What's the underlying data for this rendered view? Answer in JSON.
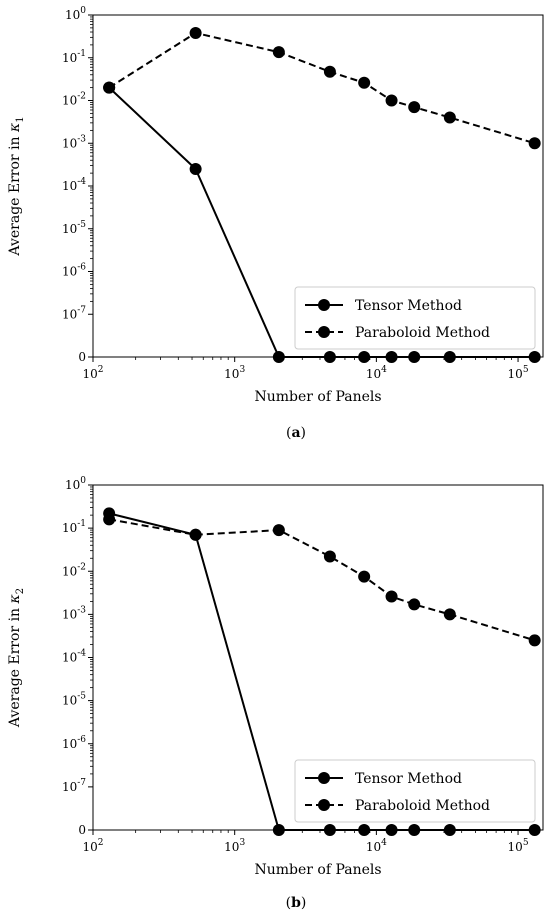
{
  "chart_data": [
    {
      "type": "line",
      "panel_label": "a",
      "xlabel": "Number of Panels",
      "ylabel_prefix": "Average Error in ",
      "ylabel_symbol": "κ",
      "ylabel_sub": "1",
      "x_scale": "log",
      "y_scale": "symlog",
      "xlim": [
        100,
        150000
      ],
      "ylim": [
        0,
        1
      ],
      "x_ticks": [
        {
          "value": 100,
          "base": "10",
          "exp": "2"
        },
        {
          "value": 1000,
          "base": "10",
          "exp": "3"
        },
        {
          "value": 10000,
          "base": "10",
          "exp": "4"
        },
        {
          "value": 100000,
          "base": "10",
          "exp": "5"
        }
      ],
      "y_ticks": [
        {
          "value": 1,
          "base": "10",
          "exp": "0"
        },
        {
          "value": 0.1,
          "base": "10",
          "exp": "-1"
        },
        {
          "value": 0.01,
          "base": "10",
          "exp": "-2"
        },
        {
          "value": 0.001,
          "base": "10",
          "exp": "-3"
        },
        {
          "value": 0.0001,
          "base": "10",
          "exp": "-4"
        },
        {
          "value": 1e-05,
          "base": "10",
          "exp": "-5"
        },
        {
          "value": 1e-06,
          "base": "10",
          "exp": "-6"
        },
        {
          "value": 1e-07,
          "base": "10",
          "exp": "-7"
        },
        {
          "value": 0,
          "base": "0",
          "exp": ""
        }
      ],
      "legend_position": "bottom-right",
      "series": [
        {
          "name": "Tensor Method",
          "style": "solid",
          "color": "#000000",
          "x": [
            130,
            530,
            2050,
            4700,
            8200,
            12800,
            18500,
            33000,
            131000
          ],
          "y": [
            0.02,
            0.00025,
            0,
            0,
            0,
            0,
            0,
            0,
            0
          ]
        },
        {
          "name": "Paraboloid Method",
          "style": "dashed",
          "color": "#000000",
          "x": [
            130,
            530,
            2050,
            4700,
            8200,
            12800,
            18500,
            33000,
            131000
          ],
          "y": [
            0.02,
            0.38,
            0.135,
            0.047,
            0.026,
            0.01,
            0.007,
            0.004,
            0.001
          ]
        }
      ]
    },
    {
      "type": "line",
      "panel_label": "b",
      "xlabel": "Number of Panels",
      "ylabel_prefix": "Average Error in ",
      "ylabel_symbol": "κ",
      "ylabel_sub": "2",
      "x_scale": "log",
      "y_scale": "symlog",
      "xlim": [
        100,
        150000
      ],
      "ylim": [
        0,
        1
      ],
      "x_ticks": [
        {
          "value": 100,
          "base": "10",
          "exp": "2"
        },
        {
          "value": 1000,
          "base": "10",
          "exp": "3"
        },
        {
          "value": 10000,
          "base": "10",
          "exp": "4"
        },
        {
          "value": 100000,
          "base": "10",
          "exp": "5"
        }
      ],
      "y_ticks": [
        {
          "value": 1,
          "base": "10",
          "exp": "0"
        },
        {
          "value": 0.1,
          "base": "10",
          "exp": "-1"
        },
        {
          "value": 0.01,
          "base": "10",
          "exp": "-2"
        },
        {
          "value": 0.001,
          "base": "10",
          "exp": "-3"
        },
        {
          "value": 0.0001,
          "base": "10",
          "exp": "-4"
        },
        {
          "value": 1e-05,
          "base": "10",
          "exp": "-5"
        },
        {
          "value": 1e-06,
          "base": "10",
          "exp": "-6"
        },
        {
          "value": 1e-07,
          "base": "10",
          "exp": "-7"
        },
        {
          "value": 0,
          "base": "0",
          "exp": ""
        }
      ],
      "legend_position": "bottom-right",
      "series": [
        {
          "name": "Tensor Method",
          "style": "solid",
          "color": "#000000",
          "x": [
            130,
            530,
            2050,
            4700,
            8200,
            12800,
            18500,
            33000,
            131000
          ],
          "y": [
            0.22,
            0.07,
            0,
            0,
            0,
            0,
            0,
            0,
            0
          ]
        },
        {
          "name": "Paraboloid Method",
          "style": "dashed",
          "color": "#000000",
          "x": [
            130,
            530,
            2050,
            4700,
            8200,
            12800,
            18500,
            33000,
            131000
          ],
          "y": [
            0.16,
            0.07,
            0.09,
            0.022,
            0.0075,
            0.0026,
            0.0017,
            0.001,
            0.00025
          ]
        }
      ]
    }
  ]
}
